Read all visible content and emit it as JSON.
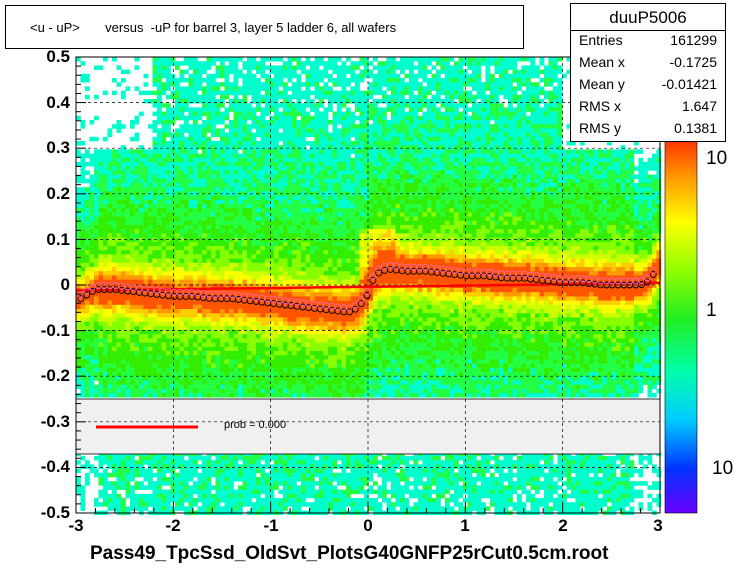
{
  "title": "<u - uP>       versus  -uP for barrel 3, layer 5 ladder 6, all wafers",
  "stats": {
    "name": "duuP5006",
    "rows": [
      {
        "label": "Entries",
        "value": "161299"
      },
      {
        "label": "Mean x",
        "value": "-0.1725"
      },
      {
        "label": "Mean y",
        "value": "-0.01421"
      },
      {
        "label": "RMS x",
        "value": "1.647"
      },
      {
        "label": "RMS y",
        "value": "0.1381"
      }
    ]
  },
  "legend": {
    "fit_label": "prob = 0.000",
    "fit_color": "#ff0000"
  },
  "xlabel": "Pass49_TpcSsd_OldSvt_PlotsG40GNFP25rCut0.5cm.root",
  "colorbar": {
    "ticks": [
      "10",
      "1",
      "10"
    ]
  },
  "chart_data": {
    "type": "heatmap",
    "title": "<u - uP>       versus  -uP for barrel 3, layer 5 ladder 6, all wafers",
    "xlabel": "Pass49_TpcSsd_OldSvt_PlotsG40GNFP25rCut0.5cm.root",
    "ylabel": "",
    "xlim": [
      -3,
      3
    ],
    "ylim": [
      -0.5,
      0.5
    ],
    "x_ticks": [
      "-3",
      "-2",
      "-1",
      "0",
      "1",
      "2",
      "3"
    ],
    "y_ticks": [
      "-0.5",
      "-0.4",
      "-0.3",
      "-0.2",
      "-0.1",
      "0",
      "0.1",
      "0.2",
      "0.3",
      "0.4",
      "0.5"
    ],
    "z_scale": "log",
    "grid": true,
    "empty_band_y": [
      -0.37,
      -0.25
    ],
    "profile_means": {
      "x": [
        -2.95,
        -2.8,
        -2.6,
        -2.4,
        -2.2,
        -2.0,
        -1.8,
        -1.6,
        -1.4,
        -1.2,
        -1.0,
        -0.8,
        -0.6,
        -0.4,
        -0.2,
        -0.1,
        0.0,
        0.05,
        0.1,
        0.2,
        0.4,
        0.6,
        0.8,
        1.0,
        1.2,
        1.4,
        1.6,
        1.8,
        2.0,
        2.2,
        2.4,
        2.6,
        2.8,
        2.9,
        2.97
      ],
      "y": [
        -0.03,
        -0.01,
        -0.01,
        -0.015,
        -0.02,
        -0.025,
        -0.025,
        -0.03,
        -0.03,
        -0.035,
        -0.04,
        -0.045,
        -0.05,
        -0.055,
        -0.06,
        -0.05,
        -0.02,
        0.01,
        0.025,
        0.035,
        0.03,
        0.03,
        0.025,
        0.02,
        0.02,
        0.015,
        0.015,
        0.01,
        0.005,
        0.005,
        0.0,
        0.0,
        0.0,
        0.01,
        0.04
      ]
    },
    "fit_line": {
      "x": [
        -3,
        -1.5,
        0,
        1.5,
        3
      ],
      "y": [
        -0.012,
        -0.008,
        -0.004,
        0.0,
        0.005
      ],
      "label": "prob = 0.000"
    }
  }
}
